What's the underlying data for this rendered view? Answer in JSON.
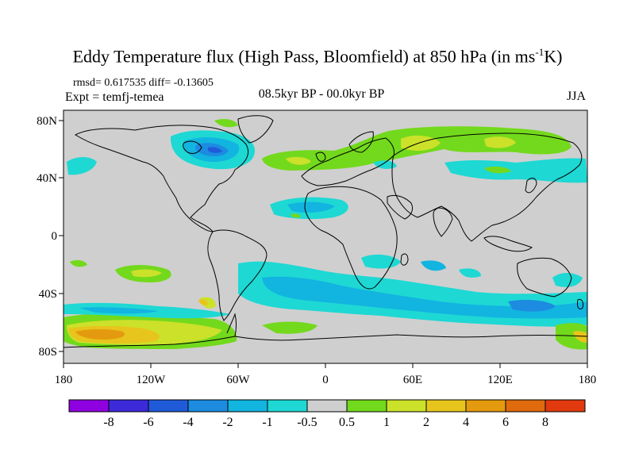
{
  "title_main": "Eddy Temperature flux (High Pass, Bloomfield) at 850 hPa (in ms",
  "title_sup": "-1",
  "title_end": "K)",
  "stats": "rmsd= 0.617535 diff= -0.13605",
  "expt": "Expt = temfj-temea",
  "period": "08.5kyr BP - 00.0kyr BP",
  "season": "JJA",
  "axes": {
    "lon_labels": [
      "180",
      "120W",
      "60W",
      "0",
      "60E",
      "120E",
      "180"
    ],
    "lat_labels": [
      "80N",
      "40N",
      "0",
      "40S",
      "80S"
    ]
  },
  "colorbar": {
    "labels": [
      "-8",
      "-6",
      "-4",
      "-2",
      "-1",
      "-0.5",
      "0.5",
      "1",
      "2",
      "4",
      "6",
      "8"
    ],
    "colors": [
      "#8f00e0",
      "#3c2ad9",
      "#1f5bd9",
      "#1c8be0",
      "#12b4e0",
      "#1ed8d4",
      "#cfcfcf",
      "#73d91c",
      "#cce12a",
      "#e7c51c",
      "#e49a0e",
      "#e06a0e",
      "#e03a0e"
    ]
  },
  "map_colors": {
    "background": "#cfcfcf",
    "coast": "#000000"
  }
}
